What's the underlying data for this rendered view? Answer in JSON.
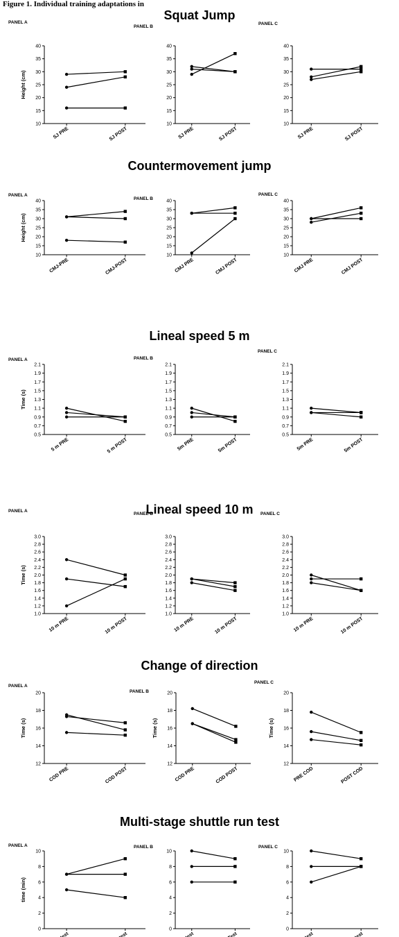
{
  "caption": "Figure 1. Individual training adaptations in",
  "chart_data": [
    {
      "type": "line",
      "title": "Squat Jump",
      "panels": [
        {
          "label": "PANEL A",
          "ylabel": "Height (cm)",
          "ylim": [
            10,
            40
          ],
          "yticks": [
            10,
            15,
            20,
            25,
            30,
            35,
            40
          ],
          "ytick_labels": [
            "10",
            "15",
            "20",
            "25",
            "30",
            "35",
            "40"
          ],
          "categories": [
            "SJ PRE",
            "SJ POST"
          ],
          "series": [
            {
              "values": [
                29,
                30
              ]
            },
            {
              "values": [
                24,
                28
              ]
            },
            {
              "values": [
                16,
                16
              ]
            }
          ]
        },
        {
          "label": "PANEL B",
          "ylabel": "",
          "ylim": [
            10,
            40
          ],
          "yticks": [
            10,
            15,
            20,
            25,
            30,
            35,
            40
          ],
          "ytick_labels": [
            "10",
            "15",
            "20",
            "25",
            "30",
            "35",
            "40"
          ],
          "categories": [
            "SJ PRE",
            "SJ POST"
          ],
          "series": [
            {
              "values": [
                32,
                30
              ]
            },
            {
              "values": [
                31,
                30
              ]
            },
            {
              "values": [
                29,
                37
              ]
            }
          ]
        },
        {
          "label": "PANEL C",
          "ylabel": "",
          "ylim": [
            10,
            40
          ],
          "yticks": [
            10,
            15,
            20,
            25,
            30,
            35,
            40
          ],
          "ytick_labels": [
            "10",
            "15",
            "20",
            "25",
            "30",
            "35",
            "40"
          ],
          "categories": [
            "SJ PRE",
            "SJ POST"
          ],
          "series": [
            {
              "values": [
                31,
                31
              ]
            },
            {
              "values": [
                28,
                32
              ]
            },
            {
              "values": [
                27,
                30
              ]
            }
          ]
        }
      ]
    },
    {
      "type": "line",
      "title": "Countermovement jump",
      "panels": [
        {
          "label": "PANEL A",
          "ylabel": "Height (cm)",
          "ylim": [
            10,
            40
          ],
          "yticks": [
            10,
            15,
            20,
            25,
            30,
            35,
            40
          ],
          "ytick_labels": [
            "10",
            "15",
            "20",
            "25",
            "30",
            "35",
            "40"
          ],
          "categories": [
            "CMJ-PRE",
            "CMJ-POST"
          ],
          "series": [
            {
              "values": [
                31,
                34
              ]
            },
            {
              "values": [
                31,
                30
              ]
            },
            {
              "values": [
                18,
                17
              ]
            }
          ]
        },
        {
          "label": "PANEL B",
          "ylabel": "",
          "ylim": [
            10,
            40
          ],
          "yticks": [
            10,
            15,
            20,
            25,
            30,
            35,
            40
          ],
          "ytick_labels": [
            "10",
            "15",
            "20",
            "25",
            "30",
            "35",
            "40"
          ],
          "categories": [
            "CMJ PRE",
            "CMJ POST"
          ],
          "series": [
            {
              "values": [
                33,
                36
              ]
            },
            {
              "values": [
                33,
                33
              ]
            },
            {
              "values": [
                11,
                30
              ]
            }
          ]
        },
        {
          "label": "PANEL C",
          "ylabel": "",
          "ylim": [
            10,
            40
          ],
          "yticks": [
            10,
            15,
            20,
            25,
            30,
            35,
            40
          ],
          "ytick_labels": [
            "10",
            "15",
            "20",
            "25",
            "30",
            "35",
            "40"
          ],
          "categories": [
            "CMJ PRE",
            "CMJ POST"
          ],
          "series": [
            {
              "values": [
                30,
                36
              ]
            },
            {
              "values": [
                30,
                30
              ]
            },
            {
              "values": [
                28,
                33
              ]
            }
          ]
        }
      ]
    },
    {
      "type": "line",
      "title": "Lineal speed 5 m",
      "panels": [
        {
          "label": "PANEL A",
          "ylabel": "Time (s)",
          "ylim": [
            0.5,
            2.1
          ],
          "yticks": [
            0.5,
            0.7,
            0.9,
            1.1,
            1.3,
            1.5,
            1.7,
            1.9,
            2.1
          ],
          "ytick_labels": [
            "0.5",
            "0.7",
            "0.9",
            "1.1",
            "1.3",
            "1.5",
            "1.7",
            "1.9",
            "2.1"
          ],
          "categories": [
            "5 m PRE",
            "5 m POST"
          ],
          "series": [
            {
              "values": [
                1.1,
                0.8
              ]
            },
            {
              "values": [
                1.0,
                0.9
              ]
            },
            {
              "values": [
                0.9,
                0.9
              ]
            }
          ]
        },
        {
          "label": "PANEL B",
          "ylabel": "",
          "ylim": [
            0.5,
            2.1
          ],
          "yticks": [
            0.5,
            0.7,
            0.9,
            1.1,
            1.3,
            1.5,
            1.7,
            1.9,
            2.1
          ],
          "ytick_labels": [
            "0.5",
            "0.7",
            "0.9",
            "1.1",
            "1.3",
            "1.5",
            "1.7",
            "1.9",
            "2.1"
          ],
          "categories": [
            "5m PRE",
            "5m POST"
          ],
          "series": [
            {
              "values": [
                1.1,
                0.8
              ]
            },
            {
              "values": [
                1.0,
                0.9
              ]
            },
            {
              "values": [
                0.9,
                0.9
              ]
            }
          ]
        },
        {
          "label": "PANEL C",
          "ylabel": "",
          "ylim": [
            0.5,
            2.1
          ],
          "yticks": [
            0.5,
            0.7,
            0.9,
            1.1,
            1.3,
            1.5,
            1.7,
            1.9,
            2.1
          ],
          "ytick_labels": [
            "0.5",
            "0.7",
            "0.9",
            "1.1",
            "1.3",
            "1.5",
            "1.7",
            "1.9",
            "2.1"
          ],
          "categories": [
            "5m PRE",
            "5m POST"
          ],
          "series": [
            {
              "values": [
                1.1,
                1.0
              ]
            },
            {
              "values": [
                1.0,
                1.0
              ]
            },
            {
              "values": [
                1.0,
                0.9
              ]
            }
          ]
        }
      ]
    },
    {
      "type": "line",
      "title": "Lineal speed 10 m",
      "panels": [
        {
          "label": "PANEL A",
          "ylabel": "Time (s)",
          "ylim": [
            1.0,
            3.0
          ],
          "yticks": [
            1.0,
            1.2,
            1.4,
            1.6,
            1.8,
            2.0,
            2.2,
            2.4,
            2.6,
            2.8,
            3.0
          ],
          "ytick_labels": [
            "1.0",
            "1.2",
            "1.4",
            "1.6",
            "1.8",
            "2.0",
            "2.2",
            "2.4",
            "2.6",
            "2.8",
            "3.0"
          ],
          "categories": [
            "10 m PRE",
            "10 m POST"
          ],
          "series": [
            {
              "values": [
                2.4,
                2.0
              ]
            },
            {
              "values": [
                1.9,
                1.7
              ]
            },
            {
              "values": [
                1.2,
                1.9
              ]
            }
          ]
        },
        {
          "label": "PANEL B",
          "ylabel": "",
          "ylim": [
            1.0,
            3.0
          ],
          "yticks": [
            1.0,
            1.2,
            1.4,
            1.6,
            1.8,
            2.0,
            2.2,
            2.4,
            2.6,
            2.8,
            3.0
          ],
          "ytick_labels": [
            "1.0",
            "1.2",
            "1.4",
            "1.6",
            "1.8",
            "2.0",
            "2.2",
            "2.4",
            "2.6",
            "2.8",
            "3.0"
          ],
          "categories": [
            "10 m PRE",
            "10 m POST"
          ],
          "series": [
            {
              "values": [
                1.9,
                1.8
              ]
            },
            {
              "values": [
                1.9,
                1.7
              ]
            },
            {
              "values": [
                1.8,
                1.6
              ]
            }
          ]
        },
        {
          "label": "PANEL C",
          "ylabel": "",
          "ylim": [
            1.0,
            3.0
          ],
          "yticks": [
            1.0,
            1.2,
            1.4,
            1.6,
            1.8,
            2.0,
            2.2,
            2.4,
            2.6,
            2.8,
            3.0
          ],
          "ytick_labels": [
            "1.0",
            "1.2",
            "1.4",
            "1.6",
            "1.8",
            "2.0",
            "2.2",
            "2.4",
            "2.6",
            "2.8",
            "3.0"
          ],
          "categories": [
            "10 m PRE",
            "10 m POST"
          ],
          "series": [
            {
              "values": [
                2.0,
                1.6
              ]
            },
            {
              "values": [
                1.9,
                1.9
              ]
            },
            {
              "values": [
                1.8,
                1.6
              ]
            }
          ]
        }
      ]
    },
    {
      "type": "line",
      "title": "Change of direction",
      "panels": [
        {
          "label": "PANEL A",
          "ylabel": "Time (s)",
          "ylim": [
            12,
            20
          ],
          "yticks": [
            12,
            14,
            16,
            18,
            20
          ],
          "ytick_labels": [
            "12",
            "14",
            "16",
            "18",
            "20"
          ],
          "categories": [
            "COD PRE",
            "COD POST"
          ],
          "series": [
            {
              "values": [
                17.5,
                15.8
              ]
            },
            {
              "values": [
                17.3,
                16.6
              ]
            },
            {
              "values": [
                15.5,
                15.2
              ]
            }
          ]
        },
        {
          "label": "PANEL B",
          "ylabel": "Time (s)",
          "ylim": [
            12,
            20
          ],
          "yticks": [
            12,
            14,
            16,
            18,
            20
          ],
          "ytick_labels": [
            "12",
            "14",
            "16",
            "18",
            "20"
          ],
          "categories": [
            "COD PRE",
            "COD POST"
          ],
          "series": [
            {
              "values": [
                18.2,
                16.2
              ]
            },
            {
              "values": [
                16.5,
                14.7
              ]
            },
            {
              "values": [
                16.5,
                14.4
              ]
            }
          ]
        },
        {
          "label": "PANEL C",
          "ylabel": "Time (s)",
          "ylim": [
            12,
            20
          ],
          "yticks": [
            12,
            14,
            16,
            18,
            20
          ],
          "ytick_labels": [
            "12",
            "14",
            "16",
            "18",
            "20"
          ],
          "categories": [
            "PRE COD",
            "POST COD"
          ],
          "series": [
            {
              "values": [
                17.8,
                15.5
              ]
            },
            {
              "values": [
                15.6,
                14.6
              ]
            },
            {
              "values": [
                14.7,
                14.1
              ]
            }
          ]
        }
      ]
    },
    {
      "type": "line",
      "title": "Multi-stage shuttle run test",
      "panels": [
        {
          "label": "PANEL A",
          "ylabel": "time (min)",
          "ylim": [
            0,
            10
          ],
          "yticks": [
            0,
            2,
            4,
            6,
            8,
            10
          ],
          "ytick_labels": [
            "0",
            "2",
            "4",
            "6",
            "8",
            "10"
          ],
          "categories": [
            "PRE test",
            "POST test"
          ],
          "series": [
            {
              "values": [
                7,
                9
              ]
            },
            {
              "values": [
                7,
                7
              ]
            },
            {
              "values": [
                5,
                4
              ]
            }
          ]
        },
        {
          "label": "PANEL B",
          "ylabel": "",
          "ylim": [
            0,
            10
          ],
          "yticks": [
            0,
            2,
            4,
            6,
            8,
            10
          ],
          "ytick_labels": [
            "0",
            "2",
            "4",
            "6",
            "8",
            "10"
          ],
          "categories": [
            "PRE test",
            "POST Test"
          ],
          "series": [
            {
              "values": [
                10,
                9
              ]
            },
            {
              "values": [
                8,
                8
              ]
            },
            {
              "values": [
                6,
                6
              ]
            }
          ]
        },
        {
          "label": "PANEL C",
          "ylabel": "",
          "ylim": [
            0,
            10
          ],
          "yticks": [
            0,
            2,
            4,
            6,
            8,
            10
          ],
          "ytick_labels": [
            "0",
            "2",
            "4",
            "6",
            "8",
            "10"
          ],
          "categories": [
            "PRE test",
            "POST test"
          ],
          "series": [
            {
              "values": [
                10,
                9
              ]
            },
            {
              "values": [
                8,
                8
              ]
            },
            {
              "values": [
                6,
                8
              ]
            }
          ]
        }
      ]
    }
  ]
}
